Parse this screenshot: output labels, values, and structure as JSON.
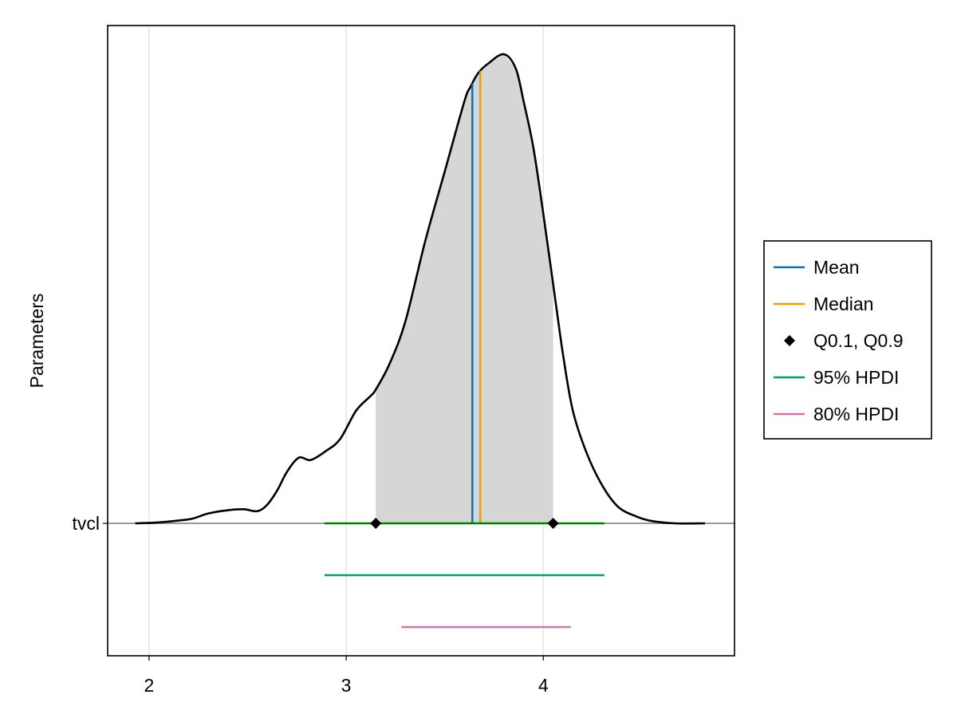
{
  "chart_data": {
    "type": "density",
    "parameter": "tvcl",
    "ylabel": "Parameters",
    "xlabel": "",
    "xlim": [
      1.79,
      4.97
    ],
    "xticks": [
      "2",
      "3",
      "4"
    ],
    "yticks": [
      "tvcl"
    ],
    "grid": true,
    "density_peak": 1.0,
    "density": [
      [
        1.93,
        0.0
      ],
      [
        2.05,
        0.002
      ],
      [
        2.15,
        0.006
      ],
      [
        2.22,
        0.01
      ],
      [
        2.3,
        0.021
      ],
      [
        2.4,
        0.028
      ],
      [
        2.48,
        0.03
      ],
      [
        2.55,
        0.026
      ],
      [
        2.6,
        0.04
      ],
      [
        2.65,
        0.07
      ],
      [
        2.7,
        0.11
      ],
      [
        2.76,
        0.14
      ],
      [
        2.82,
        0.135
      ],
      [
        2.9,
        0.155
      ],
      [
        2.97,
        0.18
      ],
      [
        3.05,
        0.24
      ],
      [
        3.12,
        0.27
      ],
      [
        3.15,
        0.285
      ],
      [
        3.22,
        0.34
      ],
      [
        3.3,
        0.43
      ],
      [
        3.4,
        0.6
      ],
      [
        3.5,
        0.75
      ],
      [
        3.6,
        0.9
      ],
      [
        3.63,
        0.93
      ],
      [
        3.67,
        0.96
      ],
      [
        3.72,
        0.98
      ],
      [
        3.8,
        1.0
      ],
      [
        3.86,
        0.97
      ],
      [
        3.9,
        0.9
      ],
      [
        3.95,
        0.8
      ],
      [
        4.0,
        0.66
      ],
      [
        4.05,
        0.51
      ],
      [
        4.1,
        0.36
      ],
      [
        4.15,
        0.24
      ],
      [
        4.22,
        0.15
      ],
      [
        4.3,
        0.08
      ],
      [
        4.38,
        0.035
      ],
      [
        4.47,
        0.015
      ],
      [
        4.55,
        0.005
      ],
      [
        4.67,
        0.0
      ],
      [
        4.82,
        0.0
      ]
    ],
    "shaded_interval": [
      3.15,
      4.05
    ],
    "mean": 3.64,
    "median": 3.68,
    "quantiles": {
      "label": "Q0.1, Q0.9",
      "values": [
        3.15,
        4.05
      ]
    },
    "hpdi_95": [
      2.89,
      4.31
    ],
    "hpdi_80": [
      3.28,
      4.14
    ],
    "legend": {
      "placement": "right",
      "entries": [
        {
          "label": "Mean",
          "color": "#0072b2",
          "marker": "line"
        },
        {
          "label": "Median",
          "color": "#e69f00",
          "marker": "line"
        },
        {
          "label": "Q0.1, Q0.9",
          "color": "#000000",
          "marker": "diamond"
        },
        {
          "label": "95% HPDI",
          "color": "#009e73",
          "marker": "line"
        },
        {
          "label": "80% HPDI",
          "color": "#cc79a7",
          "marker": "line"
        }
      ]
    },
    "colors": {
      "mean": "#0072b2",
      "median": "#e69f00",
      "hpdi_95": "#009e73",
      "hpdi_80": "#cc79a7",
      "baseline_interval": "#008000",
      "shade": "#d6d6d6",
      "density": "#000000",
      "grid": "#e4e4e4",
      "baseline": "#999999"
    }
  }
}
